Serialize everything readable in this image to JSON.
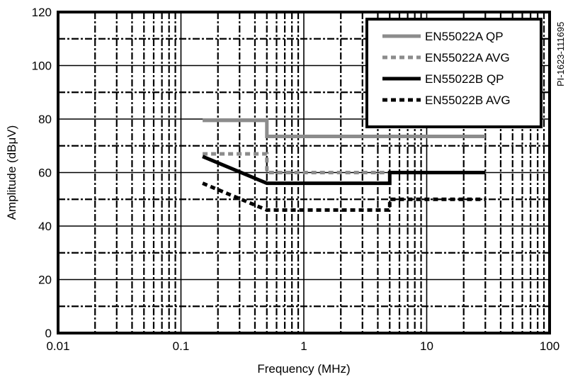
{
  "chart_data": {
    "type": "line",
    "xlabel": "Frequency (MHz)",
    "ylabel": "Amplitude (dBμV)",
    "figure_code": "PI-1623-111695",
    "x_scale": "log",
    "xlim": [
      0.01,
      100
    ],
    "ylim": [
      0,
      120
    ],
    "x_ticks": [
      {
        "value": 0.01,
        "label": "0.01"
      },
      {
        "value": 0.1,
        "label": "0.1"
      },
      {
        "value": 1,
        "label": "1"
      },
      {
        "value": 10,
        "label": "10"
      },
      {
        "value": 100,
        "label": "100"
      }
    ],
    "y_ticks": [
      {
        "value": 0,
        "label": "0"
      },
      {
        "value": 20,
        "label": "20"
      },
      {
        "value": 40,
        "label": "40"
      },
      {
        "value": 60,
        "label": "60"
      },
      {
        "value": 80,
        "label": "80"
      },
      {
        "value": 100,
        "label": "100"
      },
      {
        "value": 120,
        "label": "120"
      }
    ],
    "grid": true,
    "legend": "top-right",
    "series": [
      {
        "name": "EN55022A QP",
        "color": "#8c8c8c",
        "style": "solid",
        "points": [
          [
            0.15,
            79.5
          ],
          [
            0.5,
            79.5
          ],
          [
            0.5,
            73.5
          ],
          [
            30,
            73.5
          ]
        ]
      },
      {
        "name": "EN55022A AVG",
        "color": "#8c8c8c",
        "style": "dashed",
        "points": [
          [
            0.15,
            67
          ],
          [
            0.5,
            67
          ],
          [
            0.5,
            60
          ],
          [
            30,
            60
          ]
        ]
      },
      {
        "name": "EN55022B QP",
        "color": "#000000",
        "style": "solid",
        "points": [
          [
            0.15,
            66
          ],
          [
            0.5,
            56
          ],
          [
            5,
            56
          ],
          [
            5,
            60
          ],
          [
            30,
            60
          ]
        ]
      },
      {
        "name": "EN55022B AVG",
        "color": "#000000",
        "style": "dashed",
        "points": [
          [
            0.15,
            56
          ],
          [
            0.5,
            46
          ],
          [
            5,
            46
          ],
          [
            5,
            50
          ],
          [
            30,
            50
          ]
        ]
      }
    ]
  }
}
